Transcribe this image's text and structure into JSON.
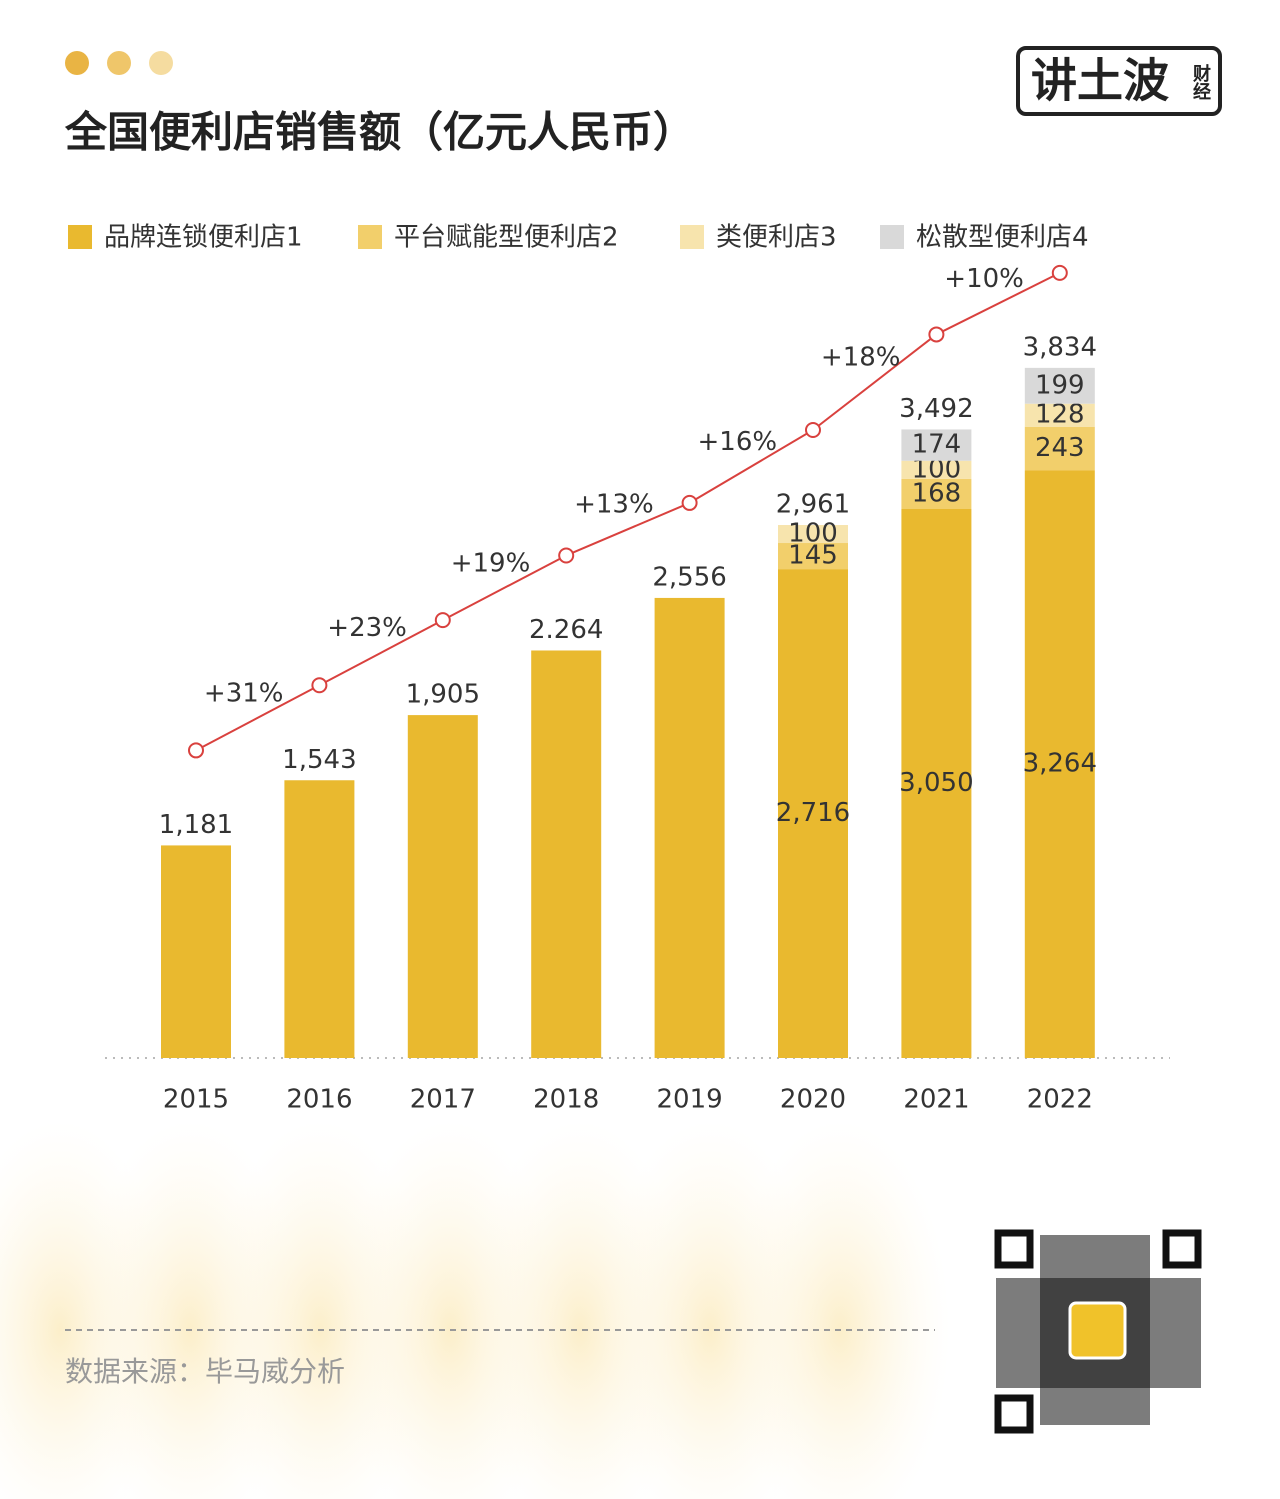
{
  "chart_data": {
    "type": "bar",
    "stacked": true,
    "title": "全国便利店销售额（亿元人民币）",
    "source": "数据来源：毕马威分析",
    "logo": {
      "main": "讲土波",
      "sub": "财经"
    },
    "categories": [
      "2015",
      "2016",
      "2017",
      "2018",
      "2019",
      "2020",
      "2021",
      "2022"
    ],
    "series": [
      {
        "name": "品牌连锁便利店1",
        "color": "#e9b92f",
        "values": [
          1181,
          1543,
          1905,
          2264,
          2556,
          2716,
          3050,
          3264
        ],
        "value_labels": [
          "1,181",
          "1,543",
          "1,905",
          "2.264",
          "2,556",
          "2,716",
          "3,050",
          "3,264"
        ]
      },
      {
        "name": "平台赋能型便利店2",
        "color": "#f2cf6b",
        "values": [
          null,
          null,
          null,
          null,
          null,
          145,
          168,
          243
        ]
      },
      {
        "name": "类便利店3",
        "color": "#f7e4ad",
        "values": [
          null,
          null,
          null,
          null,
          null,
          100,
          100,
          128
        ]
      },
      {
        "name": "松散型便利店4",
        "color": "#d9d9d9",
        "values": [
          null,
          null,
          null,
          null,
          null,
          null,
          174,
          199
        ]
      }
    ],
    "totals": [
      null,
      null,
      null,
      null,
      null,
      2961,
      3492,
      3834
    ],
    "total_labels": [
      null,
      null,
      null,
      null,
      null,
      "2,961",
      "3,492",
      "3,834"
    ],
    "growth": {
      "color": "#d9413e",
      "values": [
        31,
        23,
        19,
        13,
        16,
        18,
        10
      ],
      "value_labels": [
        "+31%",
        "+23%",
        "+19%",
        "+13%",
        "+16%",
        "+18%",
        "+10%"
      ]
    },
    "ylim": [
      0,
      4400
    ]
  }
}
